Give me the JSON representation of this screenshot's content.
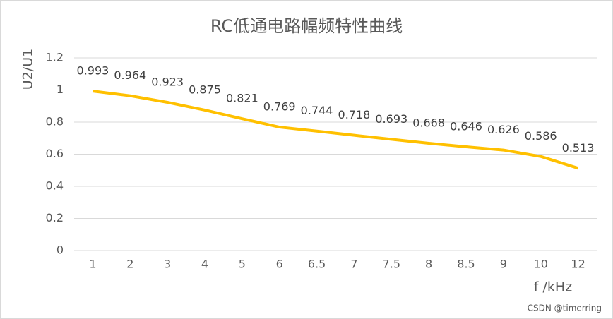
{
  "chart_data": {
    "type": "line",
    "title": "RC低通电路幅频特性曲线",
    "x_label": "f /kHz",
    "y_label": "U2/U1",
    "categories": [
      "1",
      "2",
      "3",
      "4",
      "5",
      "6",
      "6.5",
      "7",
      "7.5",
      "8",
      "8.5",
      "9",
      "10",
      "12"
    ],
    "series": [
      {
        "name": "U2/U1",
        "color": "#FFC000",
        "values": [
          0.993,
          0.964,
          0.923,
          0.875,
          0.821,
          0.769,
          0.744,
          0.718,
          0.693,
          0.668,
          0.646,
          0.626,
          0.586,
          0.513
        ]
      }
    ],
    "ylim": [
      0,
      1.2
    ],
    "yticks": [
      0,
      0.2,
      0.4,
      0.6,
      0.8,
      1,
      1.2
    ],
    "grid": true,
    "watermark": "CSDN @timerring"
  }
}
